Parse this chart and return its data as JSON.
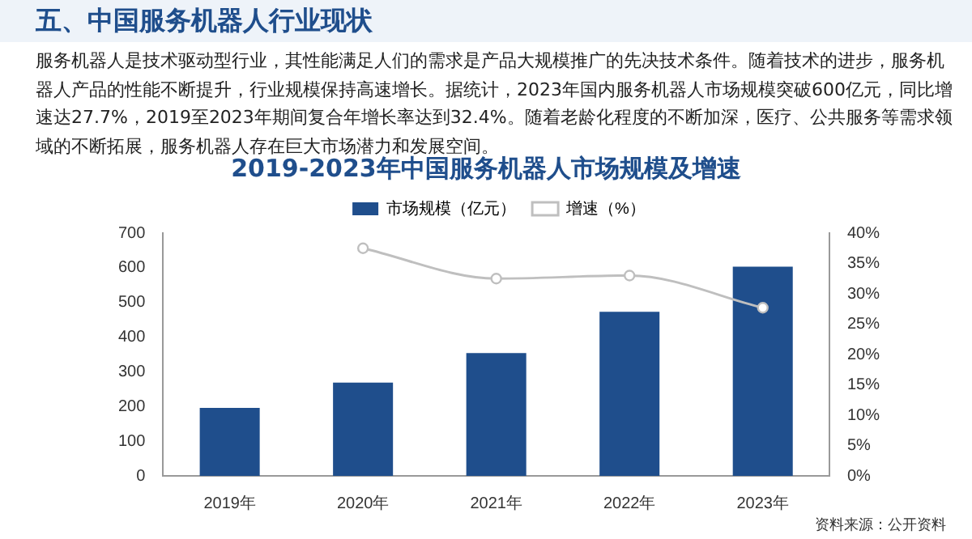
{
  "chart_data": {
    "type": "bar",
    "title": "2019-2023年中国服务机器人市场规模及增速",
    "annotations": [
      "五、中国服务机器人行业现状",
      "服务机器人是技术驱动型行业，其性能满足人们的需求是产品大规模推广的先决技术条件。随着技术的进步，服务机器人产品的性能不断提升，行业规模保持高速增长。据统计，2023年国内服务机器人市场规模突破600亿元，同比增速达27.7%，2019至2023年期间复合年增长率达到32.4%。随着老龄化程度的不断加深，医疗、公共服务等需求领域的不断拓展，服务机器人存在巨大市场潜力和发展空间。",
      "资料来源：公开资料"
    ],
    "categories": [
      "2019年",
      "2020年",
      "2021年",
      "2022年",
      "2023年"
    ],
    "series": [
      {
        "name": "市场规模（亿元）",
        "color": "#1f4e8c",
        "values": [
          196,
          269,
          354,
          473,
          603
        ]
      },
      {
        "name": "增速（%）",
        "type": "line",
        "axis": "y2",
        "color": "#bfbfbf",
        "values": [
          null,
          37.5,
          32.5,
          33.0,
          27.7
        ]
      }
    ],
    "ylim": [
      0,
      700
    ],
    "yticks": [
      0,
      100,
      200,
      300,
      400,
      500,
      600,
      700
    ],
    "y2lim": [
      0,
      40
    ],
    "y2ticks": [
      {
        "value": 0,
        "label": "0%"
      },
      {
        "value": 5,
        "label": "5%"
      },
      {
        "value": 10,
        "label": "10%"
      },
      {
        "value": 15,
        "label": "15%"
      },
      {
        "value": 20,
        "label": "20%"
      },
      {
        "value": 25,
        "label": "25%"
      },
      {
        "value": 30,
        "label": "30%"
      },
      {
        "value": 35,
        "label": "35%"
      },
      {
        "value": 40,
        "label": "40%"
      }
    ],
    "legend": "top",
    "grid": false,
    "marker": "circle"
  }
}
